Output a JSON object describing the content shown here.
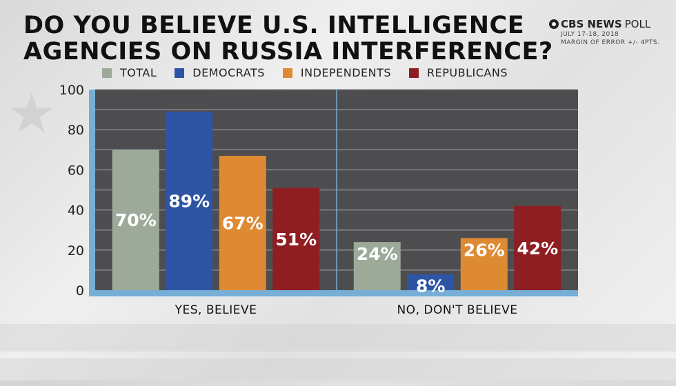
{
  "title_lines": [
    "DO YOU BELIEVE U.S. INTELLIGENCE",
    "AGENCIES ON RUSSIA INTERFERENCE?"
  ],
  "brand": {
    "cbs": "CBS NEWS",
    "poll": "POLL",
    "date": "JULY 17-18, 2018",
    "margin": "MARGIN OF ERROR +/- 4PTS."
  },
  "colors": {
    "total": "#9daa9a",
    "democrats": "#2d55a4",
    "independents": "#de8a33",
    "republicans": "#8e1e22",
    "plot_bg": "#4d4d4f",
    "axis": "#77aed6"
  },
  "chart_data": {
    "type": "bar",
    "title": "DO YOU BELIEVE U.S. INTELLIGENCE AGENCIES ON RUSSIA INTERFERENCE?",
    "categories": [
      "YES, BELIEVE",
      "NO, DON'T BELIEVE"
    ],
    "series": [
      {
        "name": "TOTAL",
        "values": [
          70,
          24
        ],
        "labels": [
          "70%",
          "24%"
        ]
      },
      {
        "name": "DEMOCRATS",
        "values": [
          89,
          8
        ],
        "labels": [
          "89%",
          "8%"
        ]
      },
      {
        "name": "INDEPENDENTS",
        "values": [
          67,
          26
        ],
        "labels": [
          "67%",
          "26%"
        ]
      },
      {
        "name": "REPUBLICANS",
        "values": [
          51,
          42
        ],
        "labels": [
          "51%",
          "42%"
        ]
      }
    ],
    "yticks": [
      "0",
      "20",
      "40",
      "60",
      "80",
      "100"
    ],
    "ylim": [
      0,
      100
    ],
    "grid": true,
    "legend": "top"
  }
}
